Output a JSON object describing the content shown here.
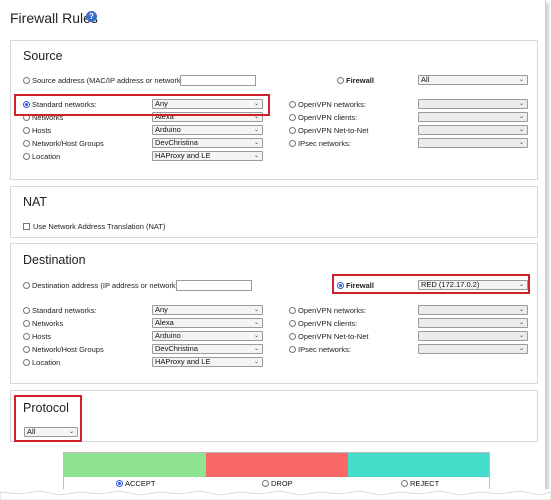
{
  "page": {
    "title": "Firewall Rules",
    "help_icon": "help-icon"
  },
  "source": {
    "title": "Source",
    "address_label": "Source address (MAC/IP address or network):",
    "address_value": "",
    "firewall_label": "Firewall",
    "firewall_select": "All",
    "standard_label": "Standard networks:",
    "standard_value": "Any",
    "networks_label": "Networks",
    "networks_value": "Alexa",
    "hosts_label": "Hosts",
    "hosts_value": "Arduino",
    "groups_label": "Network/Host Groups",
    "groups_value": "DevChristina",
    "location_label": "Location",
    "location_value": "HAProxy and LE",
    "ovpn_networks_label": "OpenVPN networks:",
    "ovpn_clients_label": "OpenVPN clients:",
    "ovpn_n2n_label": "OpenVPN Net-to-Net",
    "ipsec_label": "IPsec networks:"
  },
  "nat": {
    "title": "NAT",
    "checkbox_label": "Use Network Address Translation (NAT)"
  },
  "destination": {
    "title": "Destination",
    "address_label": "Destination address (IP address or network):",
    "address_value": "",
    "firewall_label": "Firewall",
    "firewall_select": "RED (172.17.0.2)",
    "standard_label": "Standard networks:",
    "standard_value": "Any",
    "networks_label": "Networks",
    "networks_value": "Alexa",
    "hosts_label": "Hosts",
    "hosts_value": "Arduino",
    "groups_label": "Network/Host Groups",
    "groups_value": "DevChristina",
    "location_label": "Location",
    "location_value": "HAProxy and LE",
    "ovpn_networks_label": "OpenVPN networks:",
    "ovpn_clients_label": "OpenVPN clients:",
    "ovpn_n2n_label": "OpenVPN Net-to-Net",
    "ipsec_label": "IPsec networks:"
  },
  "protocol": {
    "title": "Protocol",
    "select_value": "All"
  },
  "actions": {
    "accept_label": "ACCEPT",
    "drop_label": "DROP",
    "reject_label": "REJECT",
    "accept_color": "#8fe58f",
    "drop_color": "#f86868",
    "reject_color": "#44ddc9",
    "selected": "ACCEPT"
  },
  "colors": {
    "highlight": "#d0202a",
    "radio_selected": "#2a5bd7"
  }
}
